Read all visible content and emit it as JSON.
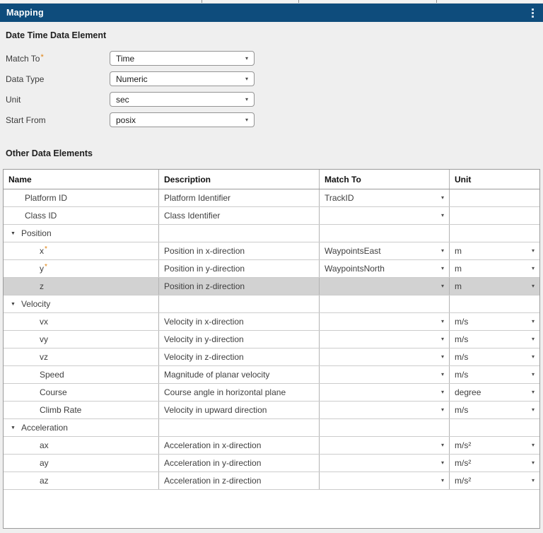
{
  "header": {
    "title": "Mapping",
    "menu_icon": "vertical-ellipsis"
  },
  "colors": {
    "header_bg": "#0e4c7c",
    "selected_row": "#d2d2d2",
    "required_marker": "#e0820f",
    "panel_bg": "#efefef"
  },
  "sections": {
    "datetime_heading": "Date Time Data Element",
    "other_heading": "Other Data Elements"
  },
  "form": {
    "fields": [
      {
        "label": "Match To",
        "required": true,
        "value": "Time"
      },
      {
        "label": "Data Type",
        "required": false,
        "value": "Numeric"
      },
      {
        "label": "Unit",
        "required": false,
        "value": "sec"
      },
      {
        "label": "Start From",
        "required": false,
        "value": "posix"
      }
    ]
  },
  "table": {
    "columns": [
      "Name",
      "Description",
      "Match To",
      "Unit"
    ],
    "rows": [
      {
        "name": "Platform ID",
        "type": "item",
        "indent": 1,
        "required": false,
        "description": "Platform Identifier",
        "match_to": "TrackID",
        "match_dropdown": true,
        "unit": "",
        "unit_dropdown": false,
        "selected": false
      },
      {
        "name": "Class ID",
        "type": "item",
        "indent": 1,
        "required": false,
        "description": "Class Identifier",
        "match_to": "",
        "match_dropdown": true,
        "unit": "",
        "unit_dropdown": false,
        "selected": false
      },
      {
        "name": "Position",
        "type": "group",
        "indent": 0,
        "required": false,
        "description": "",
        "match_to": "",
        "match_dropdown": false,
        "unit": "",
        "unit_dropdown": false,
        "selected": false
      },
      {
        "name": "x",
        "type": "item",
        "indent": 2,
        "required": true,
        "description": "Position in x-direction",
        "match_to": "WaypointsEast",
        "match_dropdown": true,
        "unit": "m",
        "unit_dropdown": true,
        "selected": false
      },
      {
        "name": "y",
        "type": "item",
        "indent": 2,
        "required": true,
        "description": "Position in y-direction",
        "match_to": "WaypointsNorth",
        "match_dropdown": true,
        "unit": "m",
        "unit_dropdown": true,
        "selected": false
      },
      {
        "name": "z",
        "type": "item",
        "indent": 2,
        "required": false,
        "description": "Position in z-direction",
        "match_to": "",
        "match_dropdown": true,
        "unit": "m",
        "unit_dropdown": true,
        "selected": true
      },
      {
        "name": "Velocity",
        "type": "group",
        "indent": 0,
        "required": false,
        "description": "",
        "match_to": "",
        "match_dropdown": false,
        "unit": "",
        "unit_dropdown": false,
        "selected": false
      },
      {
        "name": "vx",
        "type": "item",
        "indent": 2,
        "required": false,
        "description": "Velocity in x-direction",
        "match_to": "",
        "match_dropdown": true,
        "unit": "m/s",
        "unit_dropdown": true,
        "selected": false
      },
      {
        "name": "vy",
        "type": "item",
        "indent": 2,
        "required": false,
        "description": "Velocity in y-direction",
        "match_to": "",
        "match_dropdown": true,
        "unit": "m/s",
        "unit_dropdown": true,
        "selected": false
      },
      {
        "name": "vz",
        "type": "item",
        "indent": 2,
        "required": false,
        "description": "Velocity in z-direction",
        "match_to": "",
        "match_dropdown": true,
        "unit": "m/s",
        "unit_dropdown": true,
        "selected": false
      },
      {
        "name": "Speed",
        "type": "item",
        "indent": 2,
        "required": false,
        "description": "Magnitude of planar velocity",
        "match_to": "",
        "match_dropdown": true,
        "unit": "m/s",
        "unit_dropdown": true,
        "selected": false
      },
      {
        "name": "Course",
        "type": "item",
        "indent": 2,
        "required": false,
        "description": "Course angle in horizontal plane",
        "match_to": "",
        "match_dropdown": true,
        "unit": "degree",
        "unit_dropdown": true,
        "selected": false
      },
      {
        "name": "Climb Rate",
        "type": "item",
        "indent": 2,
        "required": false,
        "description": "Velocity in upward direction",
        "match_to": "",
        "match_dropdown": true,
        "unit": "m/s",
        "unit_dropdown": true,
        "selected": false
      },
      {
        "name": "Acceleration",
        "type": "group",
        "indent": 0,
        "required": false,
        "description": "",
        "match_to": "",
        "match_dropdown": false,
        "unit": "",
        "unit_dropdown": false,
        "selected": false
      },
      {
        "name": "ax",
        "type": "item",
        "indent": 2,
        "required": false,
        "description": "Acceleration in x-direction",
        "match_to": "",
        "match_dropdown": true,
        "unit": "m/s²",
        "unit_dropdown": true,
        "selected": false
      },
      {
        "name": "ay",
        "type": "item",
        "indent": 2,
        "required": false,
        "description": "Acceleration in y-direction",
        "match_to": "",
        "match_dropdown": true,
        "unit": "m/s²",
        "unit_dropdown": true,
        "selected": false
      },
      {
        "name": "az",
        "type": "item",
        "indent": 2,
        "required": false,
        "description": "Acceleration in z-direction",
        "match_to": "",
        "match_dropdown": true,
        "unit": "m/s²",
        "unit_dropdown": true,
        "selected": false
      }
    ]
  }
}
